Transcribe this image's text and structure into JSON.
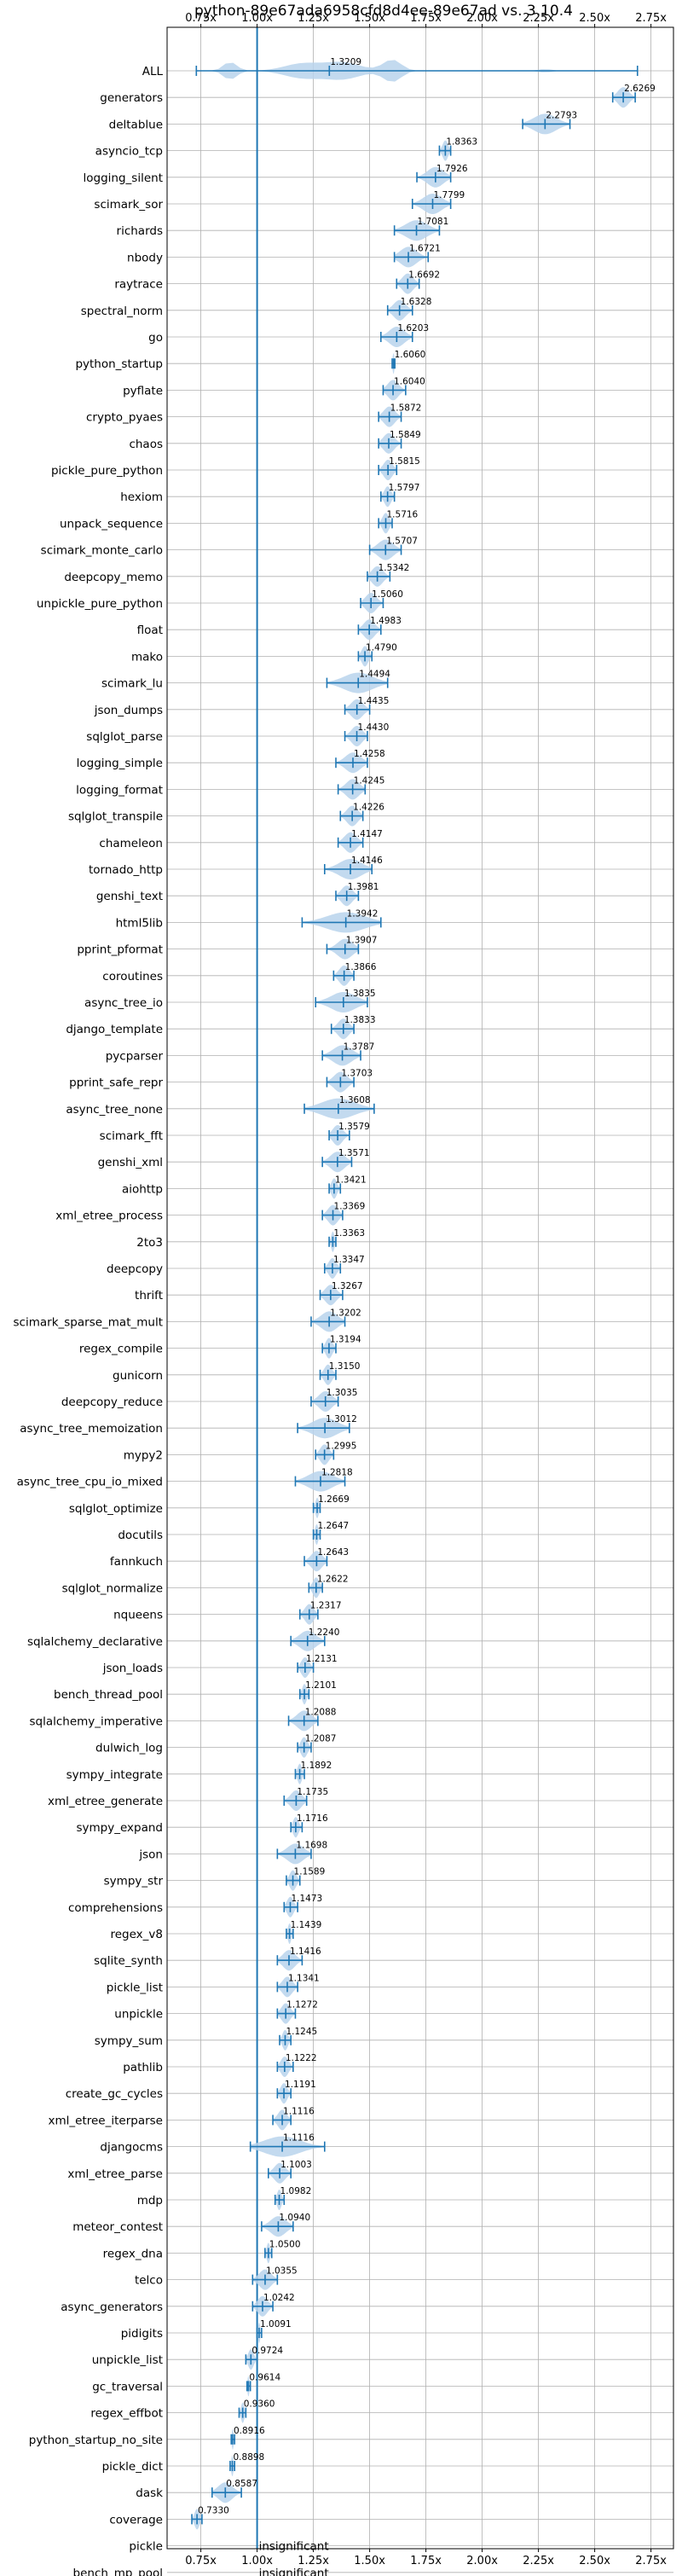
{
  "chart_data": {
    "type": "violin",
    "title": "python-89e67ada6958cfd8d4ee-89e67ad vs. 3.10.4",
    "xlim": [
      0.6,
      2.85
    ],
    "x_ticks": [
      0.75,
      1.0,
      1.25,
      1.5,
      1.75,
      2.0,
      2.25,
      2.5,
      2.75
    ],
    "x_tick_labels": [
      "0.75x",
      "1.00x",
      "1.25x",
      "1.50x",
      "1.75x",
      "2.00x",
      "2.25x",
      "2.50x",
      "2.75x"
    ],
    "reference_line": 1.0,
    "grid": true,
    "insignificant_text": "insignificant",
    "colors": {
      "violin": "#b9d3ec",
      "line": "#1f77b4"
    },
    "benchmarks": [
      {
        "name": "ALL",
        "mean": 1.3209,
        "min": 0.73,
        "max": 2.69,
        "label": "1.3209"
      },
      {
        "name": "generators",
        "mean": 2.6269,
        "min": 2.58,
        "max": 2.68,
        "label": "2.6269"
      },
      {
        "name": "deltablue",
        "mean": 2.2793,
        "min": 2.18,
        "max": 2.39,
        "label": "2.2793"
      },
      {
        "name": "asyncio_tcp",
        "mean": 1.8363,
        "min": 1.81,
        "max": 1.86,
        "label": "1.8363"
      },
      {
        "name": "logging_silent",
        "mean": 1.7926,
        "min": 1.71,
        "max": 1.86,
        "label": "1.7926"
      },
      {
        "name": "scimark_sor",
        "mean": 1.7799,
        "min": 1.69,
        "max": 1.86,
        "label": "1.7799"
      },
      {
        "name": "richards",
        "mean": 1.7081,
        "min": 1.61,
        "max": 1.81,
        "label": "1.7081"
      },
      {
        "name": "nbody",
        "mean": 1.6721,
        "min": 1.61,
        "max": 1.76,
        "label": "1.6721"
      },
      {
        "name": "raytrace",
        "mean": 1.6692,
        "min": 1.62,
        "max": 1.72,
        "label": "1.6692"
      },
      {
        "name": "spectral_norm",
        "mean": 1.6328,
        "min": 1.58,
        "max": 1.69,
        "label": "1.6328"
      },
      {
        "name": "go",
        "mean": 1.6203,
        "min": 1.55,
        "max": 1.69,
        "label": "1.6203"
      },
      {
        "name": "python_startup",
        "mean": 1.606,
        "min": 1.6,
        "max": 1.612,
        "label": "1.6060"
      },
      {
        "name": "pyflate",
        "mean": 1.604,
        "min": 1.56,
        "max": 1.66,
        "label": "1.6040"
      },
      {
        "name": "crypto_pyaes",
        "mean": 1.5872,
        "min": 1.54,
        "max": 1.64,
        "label": "1.5872"
      },
      {
        "name": "chaos",
        "mean": 1.5849,
        "min": 1.54,
        "max": 1.64,
        "label": "1.5849"
      },
      {
        "name": "pickle_pure_python",
        "mean": 1.5815,
        "min": 1.54,
        "max": 1.62,
        "label": "1.5815"
      },
      {
        "name": "hexiom",
        "mean": 1.5797,
        "min": 1.55,
        "max": 1.61,
        "label": "1.5797"
      },
      {
        "name": "unpack_sequence",
        "mean": 1.5716,
        "min": 1.54,
        "max": 1.6,
        "label": "1.5716"
      },
      {
        "name": "scimark_monte_carlo",
        "mean": 1.5707,
        "min": 1.5,
        "max": 1.64,
        "label": "1.5707"
      },
      {
        "name": "deepcopy_memo",
        "mean": 1.5342,
        "min": 1.49,
        "max": 1.59,
        "label": "1.5342"
      },
      {
        "name": "unpickle_pure_python",
        "mean": 1.506,
        "min": 1.46,
        "max": 1.56,
        "label": "1.5060"
      },
      {
        "name": "float",
        "mean": 1.4983,
        "min": 1.45,
        "max": 1.55,
        "label": "1.4983"
      },
      {
        "name": "mako",
        "mean": 1.479,
        "min": 1.45,
        "max": 1.51,
        "label": "1.4790"
      },
      {
        "name": "scimark_lu",
        "mean": 1.4494,
        "min": 1.31,
        "max": 1.58,
        "label": "1.4494"
      },
      {
        "name": "json_dumps",
        "mean": 1.4435,
        "min": 1.39,
        "max": 1.5,
        "label": "1.4435"
      },
      {
        "name": "sqlglot_parse",
        "mean": 1.443,
        "min": 1.39,
        "max": 1.49,
        "label": "1.4430"
      },
      {
        "name": "logging_simple",
        "mean": 1.4258,
        "min": 1.35,
        "max": 1.49,
        "label": "1.4258"
      },
      {
        "name": "logging_format",
        "mean": 1.4245,
        "min": 1.36,
        "max": 1.48,
        "label": "1.4245"
      },
      {
        "name": "sqlglot_transpile",
        "mean": 1.4226,
        "min": 1.37,
        "max": 1.47,
        "label": "1.4226"
      },
      {
        "name": "chameleon",
        "mean": 1.4147,
        "min": 1.36,
        "max": 1.47,
        "label": "1.4147"
      },
      {
        "name": "tornado_http",
        "mean": 1.4146,
        "min": 1.3,
        "max": 1.51,
        "label": "1.4146"
      },
      {
        "name": "genshi_text",
        "mean": 1.3981,
        "min": 1.35,
        "max": 1.45,
        "label": "1.3981"
      },
      {
        "name": "html5lib",
        "mean": 1.3942,
        "min": 1.2,
        "max": 1.55,
        "label": "1.3942"
      },
      {
        "name": "pprint_pformat",
        "mean": 1.3907,
        "min": 1.31,
        "max": 1.45,
        "label": "1.3907"
      },
      {
        "name": "coroutines",
        "mean": 1.3866,
        "min": 1.34,
        "max": 1.43,
        "label": "1.3866"
      },
      {
        "name": "async_tree_io",
        "mean": 1.3835,
        "min": 1.26,
        "max": 1.49,
        "label": "1.3835"
      },
      {
        "name": "django_template",
        "mean": 1.3833,
        "min": 1.33,
        "max": 1.43,
        "label": "1.3833"
      },
      {
        "name": "pycparser",
        "mean": 1.3787,
        "min": 1.29,
        "max": 1.46,
        "label": "1.3787"
      },
      {
        "name": "pprint_safe_repr",
        "mean": 1.3703,
        "min": 1.31,
        "max": 1.43,
        "label": "1.3703"
      },
      {
        "name": "async_tree_none",
        "mean": 1.3608,
        "min": 1.21,
        "max": 1.52,
        "label": "1.3608"
      },
      {
        "name": "scimark_fft",
        "mean": 1.3579,
        "min": 1.32,
        "max": 1.41,
        "label": "1.3579"
      },
      {
        "name": "genshi_xml",
        "mean": 1.3571,
        "min": 1.29,
        "max": 1.42,
        "label": "1.3571"
      },
      {
        "name": "aiohttp",
        "mean": 1.3421,
        "min": 1.32,
        "max": 1.37,
        "label": "1.3421"
      },
      {
        "name": "xml_etree_process",
        "mean": 1.3369,
        "min": 1.29,
        "max": 1.38,
        "label": "1.3369"
      },
      {
        "name": "2to3",
        "mean": 1.3363,
        "min": 1.32,
        "max": 1.35,
        "label": "1.3363"
      },
      {
        "name": "deepcopy",
        "mean": 1.3347,
        "min": 1.3,
        "max": 1.37,
        "label": "1.3347"
      },
      {
        "name": "thrift",
        "mean": 1.3267,
        "min": 1.28,
        "max": 1.38,
        "label": "1.3267"
      },
      {
        "name": "scimark_sparse_mat_mult",
        "mean": 1.3202,
        "min": 1.24,
        "max": 1.39,
        "label": "1.3202"
      },
      {
        "name": "regex_compile",
        "mean": 1.3194,
        "min": 1.29,
        "max": 1.35,
        "label": "1.3194"
      },
      {
        "name": "gunicorn",
        "mean": 1.315,
        "min": 1.28,
        "max": 1.35,
        "label": "1.3150"
      },
      {
        "name": "deepcopy_reduce",
        "mean": 1.3035,
        "min": 1.24,
        "max": 1.36,
        "label": "1.3035"
      },
      {
        "name": "async_tree_memoization",
        "mean": 1.3012,
        "min": 1.18,
        "max": 1.41,
        "label": "1.3012"
      },
      {
        "name": "mypy2",
        "mean": 1.2995,
        "min": 1.26,
        "max": 1.34,
        "label": "1.2995"
      },
      {
        "name": "async_tree_cpu_io_mixed",
        "mean": 1.2818,
        "min": 1.17,
        "max": 1.39,
        "label": "1.2818"
      },
      {
        "name": "sqlglot_optimize",
        "mean": 1.2669,
        "min": 1.25,
        "max": 1.28,
        "label": "1.2669"
      },
      {
        "name": "docutils",
        "mean": 1.2647,
        "min": 1.25,
        "max": 1.28,
        "label": "1.2647"
      },
      {
        "name": "fannkuch",
        "mean": 1.2643,
        "min": 1.21,
        "max": 1.31,
        "label": "1.2643"
      },
      {
        "name": "sqlglot_normalize",
        "mean": 1.2622,
        "min": 1.23,
        "max": 1.29,
        "label": "1.2622"
      },
      {
        "name": "nqueens",
        "mean": 1.2317,
        "min": 1.19,
        "max": 1.27,
        "label": "1.2317"
      },
      {
        "name": "sqlalchemy_declarative",
        "mean": 1.224,
        "min": 1.15,
        "max": 1.3,
        "label": "1.2240"
      },
      {
        "name": "json_loads",
        "mean": 1.2131,
        "min": 1.18,
        "max": 1.25,
        "label": "1.2131"
      },
      {
        "name": "bench_thread_pool",
        "mean": 1.2101,
        "min": 1.19,
        "max": 1.23,
        "label": "1.2101"
      },
      {
        "name": "sqlalchemy_imperative",
        "mean": 1.2088,
        "min": 1.14,
        "max": 1.27,
        "label": "1.2088"
      },
      {
        "name": "dulwich_log",
        "mean": 1.2087,
        "min": 1.18,
        "max": 1.24,
        "label": "1.2087"
      },
      {
        "name": "sympy_integrate",
        "mean": 1.1892,
        "min": 1.17,
        "max": 1.21,
        "label": "1.1892"
      },
      {
        "name": "xml_etree_generate",
        "mean": 1.1735,
        "min": 1.12,
        "max": 1.22,
        "label": "1.1735"
      },
      {
        "name": "sympy_expand",
        "mean": 1.1716,
        "min": 1.15,
        "max": 1.2,
        "label": "1.1716"
      },
      {
        "name": "json",
        "mean": 1.1698,
        "min": 1.09,
        "max": 1.24,
        "label": "1.1698"
      },
      {
        "name": "sympy_str",
        "mean": 1.1589,
        "min": 1.13,
        "max": 1.19,
        "label": "1.1589"
      },
      {
        "name": "comprehensions",
        "mean": 1.1473,
        "min": 1.12,
        "max": 1.18,
        "label": "1.1473"
      },
      {
        "name": "regex_v8",
        "mean": 1.1439,
        "min": 1.13,
        "max": 1.16,
        "label": "1.1439"
      },
      {
        "name": "sqlite_synth",
        "mean": 1.1416,
        "min": 1.09,
        "max": 1.2,
        "label": "1.1416"
      },
      {
        "name": "pickle_list",
        "mean": 1.1341,
        "min": 1.09,
        "max": 1.18,
        "label": "1.1341"
      },
      {
        "name": "unpickle",
        "mean": 1.1272,
        "min": 1.09,
        "max": 1.17,
        "label": "1.1272"
      },
      {
        "name": "sympy_sum",
        "mean": 1.1245,
        "min": 1.1,
        "max": 1.15,
        "label": "1.1245"
      },
      {
        "name": "pathlib",
        "mean": 1.1222,
        "min": 1.09,
        "max": 1.16,
        "label": "1.1222"
      },
      {
        "name": "create_gc_cycles",
        "mean": 1.1191,
        "min": 1.09,
        "max": 1.15,
        "label": "1.1191"
      },
      {
        "name": "xml_etree_iterparse",
        "mean": 1.1116,
        "min": 1.07,
        "max": 1.15,
        "label": "1.1116"
      },
      {
        "name": "djangocms",
        "mean": 1.1116,
        "min": 0.97,
        "max": 1.3,
        "label": "1.1116"
      },
      {
        "name": "xml_etree_parse",
        "mean": 1.1003,
        "min": 1.05,
        "max": 1.15,
        "label": "1.1003"
      },
      {
        "name": "mdp",
        "mean": 1.0982,
        "min": 1.08,
        "max": 1.12,
        "label": "1.0982"
      },
      {
        "name": "meteor_contest",
        "mean": 1.094,
        "min": 1.02,
        "max": 1.16,
        "label": "1.0940"
      },
      {
        "name": "regex_dna",
        "mean": 1.05,
        "min": 1.035,
        "max": 1.065,
        "label": "1.0500"
      },
      {
        "name": "telco",
        "mean": 1.0355,
        "min": 0.98,
        "max": 1.09,
        "label": "1.0355"
      },
      {
        "name": "async_generators",
        "mean": 1.0242,
        "min": 0.98,
        "max": 1.07,
        "label": "1.0242"
      },
      {
        "name": "pidigits",
        "mean": 1.0091,
        "min": 1.0,
        "max": 1.02,
        "label": "1.0091"
      },
      {
        "name": "unpickle_list",
        "mean": 0.9724,
        "min": 0.95,
        "max": 1.0,
        "label": "0.9724"
      },
      {
        "name": "gc_traversal",
        "mean": 0.9614,
        "min": 0.955,
        "max": 0.97,
        "label": "0.9614"
      },
      {
        "name": "regex_effbot",
        "mean": 0.936,
        "min": 0.92,
        "max": 0.95,
        "label": "0.9360"
      },
      {
        "name": "python_startup_no_site",
        "mean": 0.8916,
        "min": 0.885,
        "max": 0.9,
        "label": "0.8916"
      },
      {
        "name": "pickle_dict",
        "mean": 0.8898,
        "min": 0.88,
        "max": 0.9,
        "label": "0.8898"
      },
      {
        "name": "dask",
        "mean": 0.8587,
        "min": 0.8,
        "max": 0.93,
        "label": "0.8587"
      },
      {
        "name": "coverage",
        "mean": 0.733,
        "min": 0.71,
        "max": 0.755,
        "label": "0.7330"
      },
      {
        "name": "pickle",
        "insignificant": true
      },
      {
        "name": "bench_mp_pool",
        "insignificant": true
      }
    ]
  }
}
